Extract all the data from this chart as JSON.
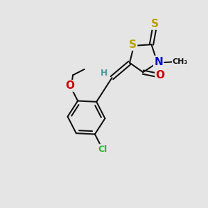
{
  "bg_color": "#e5e5e5",
  "bond_color": "#111111",
  "bond_width": 1.5,
  "atom_colors": {
    "S": "#b8a000",
    "N": "#0000cc",
    "O": "#cc0000",
    "Cl": "#2db52d",
    "H": "#4a9a9a",
    "C": "#111111"
  },
  "font_size_atom": 9,
  "figsize": [
    3.0,
    3.0
  ],
  "dpi": 100,
  "xlim": [
    0,
    10
  ],
  "ylim": [
    0,
    10
  ]
}
